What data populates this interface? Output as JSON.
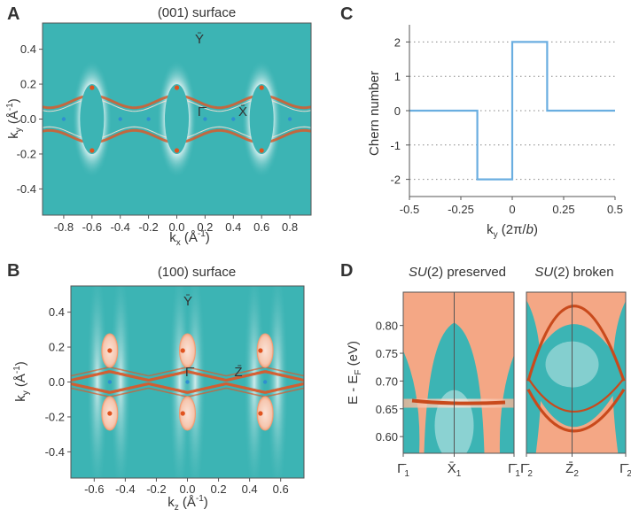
{
  "panels": {
    "A": {
      "label": "A",
      "title": "(001) surface",
      "xlabel": {
        "base": "k",
        "sub": "x",
        "unit": " (Å",
        "sup": "-1",
        "close": ")"
      },
      "ylabel": {
        "base": "k",
        "sub": "y",
        "unit": " (Å",
        "sup": "-1",
        "close": ")"
      },
      "xticks": [
        "-0.8",
        "-0.6",
        "-0.4",
        "-0.2",
        "0.0",
        "0.2",
        "0.4",
        "0.6",
        "0.8"
      ],
      "yticks": [
        "0.4",
        "0.2",
        "0.0",
        "-0.2",
        "-0.4"
      ],
      "points": [
        "Ȳ",
        "Γ̄",
        "X̄"
      ]
    },
    "B": {
      "label": "B",
      "title": "(100) surface",
      "xlabel": {
        "base": "k",
        "sub": "z",
        "unit": " (Å",
        "sup": "-1",
        "close": ")"
      },
      "ylabel": {
        "base": "k",
        "sub": "y",
        "unit": " (Å",
        "sup": "-1",
        "close": ")"
      },
      "xticks": [
        "-0.6",
        "-0.4",
        "-0.2",
        "0.0",
        "0.2",
        "0.4",
        "0.6"
      ],
      "yticks": [
        "0.4",
        "0.2",
        "0.0",
        "-0.2",
        "-0.4"
      ],
      "points": [
        "Ȳ",
        "Γ̄",
        "Z̄"
      ]
    },
    "C": {
      "label": "C"
    },
    "D": {
      "label": "D",
      "title_left": {
        "italic": "SU",
        "rest": "(2) preserved"
      },
      "title_right": {
        "italic": "SU",
        "rest": "(2) broken"
      },
      "ylabel": {
        "base": "E - E",
        "sub": "F",
        "unit": " (eV)"
      },
      "yticks": [
        "0.80",
        "0.75",
        "0.70",
        "0.65",
        "0.60"
      ],
      "xticks_left": [
        {
          "base": "Γ̄",
          "sub": "1"
        },
        {
          "base": "X̄",
          "sub": "1"
        },
        {
          "base": "Γ̄",
          "sub": "1"
        }
      ],
      "xticks_right": [
        {
          "base": "Γ̄",
          "sub": "2"
        },
        {
          "base": "Z̄",
          "sub": "2"
        },
        {
          "base": "Γ̄",
          "sub": "2"
        }
      ]
    }
  },
  "chart_data": [
    {
      "panel": "A",
      "type": "heatmap",
      "title": "(001) surface",
      "xlim": [
        -0.95,
        0.95
      ],
      "ylim": [
        -0.55,
        0.55
      ],
      "xticks": [
        -0.8,
        -0.6,
        -0.4,
        -0.2,
        0.0,
        0.2,
        0.4,
        0.6,
        0.8
      ],
      "yticks": [
        0.4,
        0.2,
        0.0,
        -0.2,
        -0.4
      ],
      "pockets_kx": [
        -0.6,
        0.0,
        0.6
      ],
      "weyl_points_red": [
        [
          -0.6,
          0.18
        ],
        [
          -0.6,
          -0.18
        ],
        [
          0.0,
          0.18
        ],
        [
          0.0,
          -0.18
        ],
        [
          0.6,
          0.18
        ],
        [
          0.6,
          -0.18
        ]
      ],
      "weyl_points_blue": [
        [
          -0.8,
          0.0
        ],
        [
          -0.4,
          0.0
        ],
        [
          -0.2,
          0.0
        ],
        [
          0.2,
          0.0
        ],
        [
          0.4,
          0.0
        ],
        [
          0.8,
          0.0
        ]
      ],
      "colors": {
        "background": "#3cb4b4",
        "surface_state": "#d95a2b",
        "pocket_halo": "#f5fbfb"
      }
    },
    {
      "panel": "B",
      "type": "heatmap",
      "title": "(100) surface",
      "xlim": [
        -0.75,
        0.75
      ],
      "ylim": [
        -0.55,
        0.55
      ],
      "xticks": [
        -0.6,
        -0.4,
        -0.2,
        0.0,
        0.2,
        0.4,
        0.6
      ],
      "yticks": [
        0.4,
        0.2,
        0.0,
        -0.2,
        -0.4
      ],
      "pockets_kz": [
        -0.5,
        0.0,
        0.5
      ],
      "weyl_points_red": [
        [
          -0.5,
          0.18
        ],
        [
          -0.5,
          -0.18
        ],
        [
          -0.03,
          0.18
        ],
        [
          -0.03,
          -0.18
        ],
        [
          0.47,
          0.18
        ],
        [
          0.47,
          -0.18
        ]
      ],
      "weyl_points_blue": [
        [
          -0.5,
          0.0
        ],
        [
          0.0,
          0.0
        ],
        [
          0.5,
          0.0
        ]
      ],
      "colors": {
        "background": "#3cb4b4",
        "surface_state": "#d95a2b",
        "pocket": "#f7d7c6"
      }
    },
    {
      "panel": "C",
      "type": "line",
      "xlabel": "k_y (2π/b)",
      "ylabel": "Chern number",
      "xlim": [
        -0.5,
        0.5
      ],
      "ylim": [
        -2.5,
        2.5
      ],
      "xticks": [
        -0.5,
        -0.25,
        0,
        0.25,
        0.5
      ],
      "xtick_labels": [
        "-0.5",
        "-0.25",
        "0",
        "0.25",
        "0.5"
      ],
      "yticks": [
        2,
        1,
        0,
        -1,
        -2
      ],
      "ytick_labels": [
        "2",
        "1",
        "0",
        "-1",
        "-2"
      ],
      "grid": "dotted horizontal",
      "series": [
        {
          "x": [
            -0.5,
            -0.17,
            -0.17,
            0,
            0,
            0.17,
            0.17,
            0.5
          ],
          "y": [
            0,
            0,
            -2,
            -2,
            2,
            2,
            0,
            0
          ],
          "color": "#6aaee0"
        }
      ]
    },
    {
      "panel": "D",
      "type": "heatmap",
      "ylabel": "E - E_F (eV)",
      "ylim": [
        0.57,
        0.86
      ],
      "yticks": [
        0.8,
        0.75,
        0.7,
        0.65,
        0.6
      ],
      "subplots": [
        {
          "title": "SU(2) preserved",
          "path": [
            "Γ̄1",
            "X̄1",
            "Γ̄1"
          ],
          "surface_band_energy": 0.66
        },
        {
          "title": "SU(2) broken",
          "path": [
            "Γ̄2",
            "Z̄2",
            "Γ̄2"
          ],
          "upper_arc_top": 0.84,
          "lower_arc_min": [
            0.6,
            0.63
          ]
        }
      ],
      "colors": {
        "bulk": "#f4a785",
        "gap": "#3cb4b4",
        "surface_state": "#c94a1c"
      }
    }
  ]
}
